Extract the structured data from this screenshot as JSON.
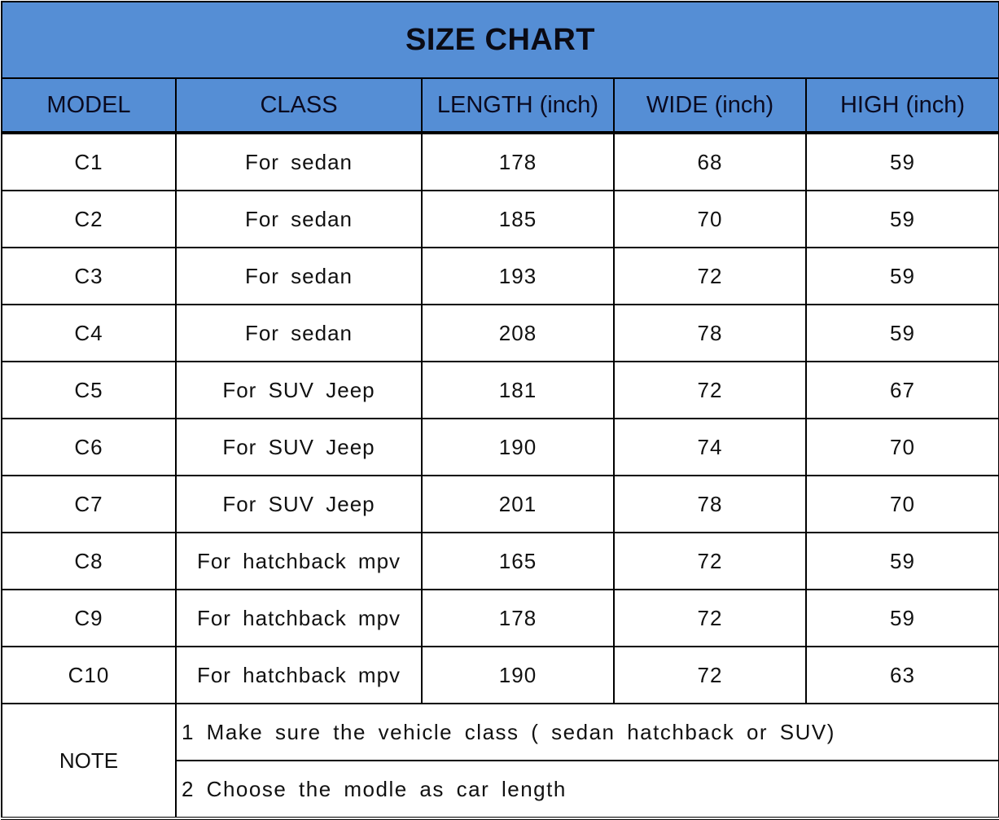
{
  "title": "SIZE CHART",
  "headers": [
    "MODEL",
    "CLASS",
    "LENGTH (inch)",
    "WIDE (inch)",
    "HIGH (inch)"
  ],
  "rows": [
    [
      "C1",
      "For sedan",
      "178",
      "68",
      "59"
    ],
    [
      "C2",
      "For sedan",
      "185",
      "70",
      "59"
    ],
    [
      "C3",
      "For sedan",
      "193",
      "72",
      "59"
    ],
    [
      "C4",
      "For sedan",
      "208",
      "78",
      "59"
    ],
    [
      "C5",
      "For SUV Jeep",
      "181",
      "72",
      "67"
    ],
    [
      "C6",
      "For SUV Jeep",
      "190",
      "74",
      "70"
    ],
    [
      "C7",
      "For SUV Jeep",
      "201",
      "78",
      "70"
    ],
    [
      "C8",
      "For hatchback mpv",
      "165",
      "72",
      "59"
    ],
    [
      "C9",
      "For hatchback mpv",
      "178",
      "72",
      "59"
    ],
    [
      "C10",
      "For hatchback mpv",
      "190",
      "72",
      "63"
    ]
  ],
  "note": {
    "label": "NOTE",
    "lines": [
      "1 Make sure the vehicle class ( sedan hatchback or SUV)",
      "2 Choose the modle as car length"
    ]
  },
  "colors": {
    "header_bg": "#558ed5",
    "border": "#000000"
  },
  "chart_data": {
    "type": "table",
    "title": "SIZE CHART",
    "columns": [
      "MODEL",
      "CLASS",
      "LENGTH (inch)",
      "WIDE (inch)",
      "HIGH (inch)"
    ],
    "rows": [
      [
        "C1",
        "For sedan",
        178,
        68,
        59
      ],
      [
        "C2",
        "For sedan",
        185,
        70,
        59
      ],
      [
        "C3",
        "For sedan",
        193,
        72,
        59
      ],
      [
        "C4",
        "For sedan",
        208,
        78,
        59
      ],
      [
        "C5",
        "For SUV Jeep",
        181,
        72,
        67
      ],
      [
        "C6",
        "For SUV Jeep",
        190,
        74,
        70
      ],
      [
        "C7",
        "For SUV Jeep",
        201,
        78,
        70
      ],
      [
        "C8",
        "For hatchback mpv",
        165,
        72,
        59
      ],
      [
        "C9",
        "For hatchback mpv",
        178,
        72,
        59
      ],
      [
        "C10",
        "For hatchback mpv",
        190,
        72,
        63
      ]
    ]
  }
}
